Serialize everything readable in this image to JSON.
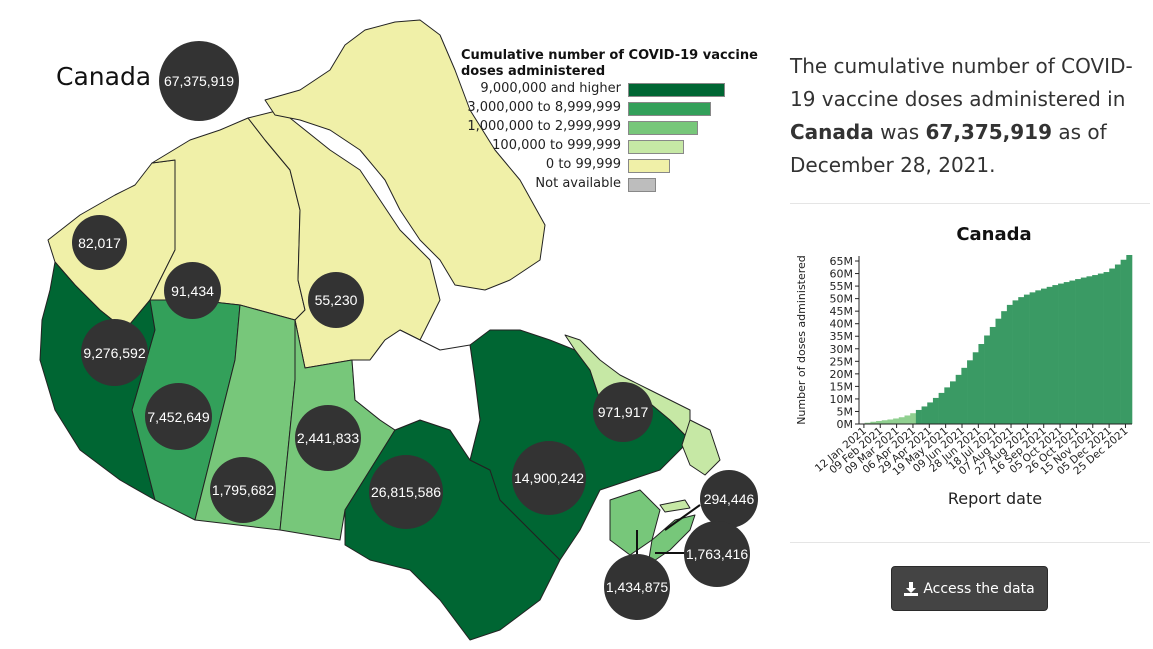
{
  "map": {
    "title": "Canada",
    "national_total": "67,375,919",
    "legend": {
      "title": "Cumulative number of COVID-19 vaccine doses administered",
      "items": [
        {
          "label": "9,000,000 and higher",
          "color": "#006633",
          "level": 5
        },
        {
          "label": "3,000,000 to 8,999,999",
          "color": "#33a05a",
          "level": 4
        },
        {
          "label": "1,000,000 to 2,999,999",
          "color": "#77c77a",
          "level": 3
        },
        {
          "label": "100,000 to 999,999",
          "color": "#c6e8a5",
          "level": 2
        },
        {
          "label": "0 to 99,999",
          "color": "#f0f0a8",
          "level": 1
        },
        {
          "label": "Not available",
          "color": "#bdbdbd",
          "level": 0
        }
      ]
    },
    "regions": [
      {
        "name": "Yukon",
        "value": "82,017",
        "color": "#f0f0a8"
      },
      {
        "name": "Northwest Territories",
        "value": "91,434",
        "color": "#f0f0a8"
      },
      {
        "name": "Nunavut",
        "value": "55,230",
        "color": "#f0f0a8"
      },
      {
        "name": "British Columbia",
        "value": "9,276,592",
        "color": "#006633"
      },
      {
        "name": "Alberta",
        "value": "7,452,649",
        "color": "#33a05a"
      },
      {
        "name": "Saskatchewan",
        "value": "1,795,682",
        "color": "#77c77a"
      },
      {
        "name": "Manitoba",
        "value": "2,441,833",
        "color": "#77c77a"
      },
      {
        "name": "Ontario",
        "value": "26,815,586",
        "color": "#006633"
      },
      {
        "name": "Quebec",
        "value": "14,900,242",
        "color": "#006633"
      },
      {
        "name": "Newfoundland and Labrador",
        "value": "971,917",
        "color": "#c6e8a5"
      },
      {
        "name": "Prince Edward Island",
        "value": "294,446",
        "color": "#c6e8a5"
      },
      {
        "name": "Nova Scotia",
        "value": "1,763,416",
        "color": "#77c77a"
      },
      {
        "name": "New Brunswick",
        "value": "1,434,875",
        "color": "#77c77a"
      }
    ]
  },
  "summary": {
    "prefix": "The cumulative number of COVID-19 vaccine doses administered in ",
    "region": "Canada",
    "middle": " was ",
    "value": "67,375,919",
    "suffix": " as of December 28, 2021."
  },
  "chart_data": {
    "type": "bar",
    "title": "Canada",
    "xlabel": "Report date",
    "ylabel": "Number of doses administered",
    "ylim": [
      0,
      67000000
    ],
    "yticks": [
      "0M",
      "5M",
      "10M",
      "15M",
      "20M",
      "25M",
      "30M",
      "35M",
      "40M",
      "45M",
      "50M",
      "55M",
      "60M",
      "65M"
    ],
    "xticks": [
      "12 Jan 2021",
      "09 Feb 2021",
      "09 Mar 2021",
      "06 Apr 2021",
      "29 Apr 2021",
      "19 May 2021",
      "09 Jun 2021",
      "28 Jun 2021",
      "18 Jul 2021",
      "07 Aug 2021",
      "27 Aug 2021",
      "16 Sep 2021",
      "05 Oct 2021",
      "26 Oct 2021",
      "15 Nov 2021",
      "05 Dec 2021",
      "25 Dec 2021"
    ],
    "series": [
      {
        "color_before": "#90d090",
        "color_after": "#3a9a64",
        "values_millions": [
          0.2,
          0.5,
          0.9,
          1.2,
          1.5,
          1.8,
          2.2,
          2.7,
          3.4,
          4.3,
          5.6,
          7.0,
          8.6,
          10.4,
          12.4,
          14.6,
          17.0,
          19.6,
          22.4,
          25.4,
          28.6,
          31.9,
          35.3,
          38.7,
          42.0,
          45.0,
          47.5,
          49.3,
          50.6,
          51.6,
          52.5,
          53.3,
          54.0,
          54.7,
          55.4,
          56.0,
          56.6,
          57.2,
          57.8,
          58.4,
          58.9,
          59.4,
          60.0,
          60.6,
          62.0,
          63.6,
          65.5,
          67.4
        ]
      }
    ]
  },
  "access_button": {
    "label": "Access the data",
    "icon": "download-icon"
  }
}
